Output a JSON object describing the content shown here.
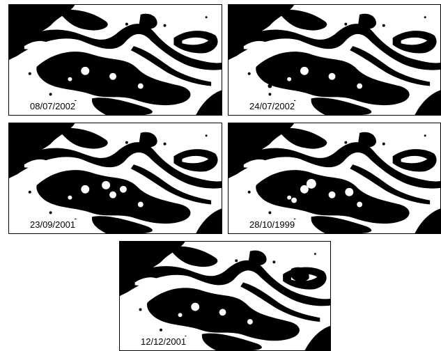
{
  "panels": [
    {
      "date": "08/07/2002"
    },
    {
      "date": "24/07/2002"
    },
    {
      "date": "23/09/2001"
    },
    {
      "date": "28/10/1999"
    },
    {
      "date": "12/12/2001"
    }
  ]
}
